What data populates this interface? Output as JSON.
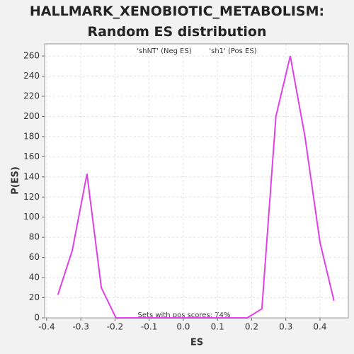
{
  "chart_data": {
    "type": "line",
    "title": "HALLMARK_XENOBIOTIC_METABOLISM: Random ES distribution",
    "xlabel": "ES",
    "ylabel": "P(ES)",
    "legend_neg": "'shNT' (Neg ES)",
    "legend_neg_color": "#3333cc",
    "legend_pos": "'sh1' (Pos ES)",
    "legend_pos_color": "#e03030",
    "annotation": "Sets with pos scores: 74%",
    "x": [
      -0.367,
      -0.325,
      -0.282,
      -0.24,
      -0.197,
      -0.154,
      -0.111,
      -0.068,
      -0.025,
      0.017,
      0.06,
      0.102,
      0.145,
      0.187,
      0.23,
      0.271,
      0.313,
      0.356,
      0.4,
      0.441
    ],
    "series": [
      {
        "name": "P(ES)",
        "color": "#e040e8",
        "values": [
          23,
          67,
          143,
          30,
          0,
          0,
          0,
          0,
          0,
          0,
          0,
          0,
          0,
          0,
          9,
          200,
          260,
          180,
          75,
          17
        ]
      }
    ],
    "xlim": [
      -0.406,
      0.483
    ],
    "ylim": [
      0,
      272
    ],
    "xticks": [
      -0.4,
      -0.3,
      -0.2,
      -0.1,
      {
        "value": 0,
        "label": "0.0"
      },
      0.1,
      0.2,
      0.3,
      0.4
    ],
    "yticks": [
      0,
      20,
      40,
      60,
      80,
      100,
      120,
      140,
      160,
      180,
      200,
      220,
      240,
      260
    ],
    "grid": true
  }
}
